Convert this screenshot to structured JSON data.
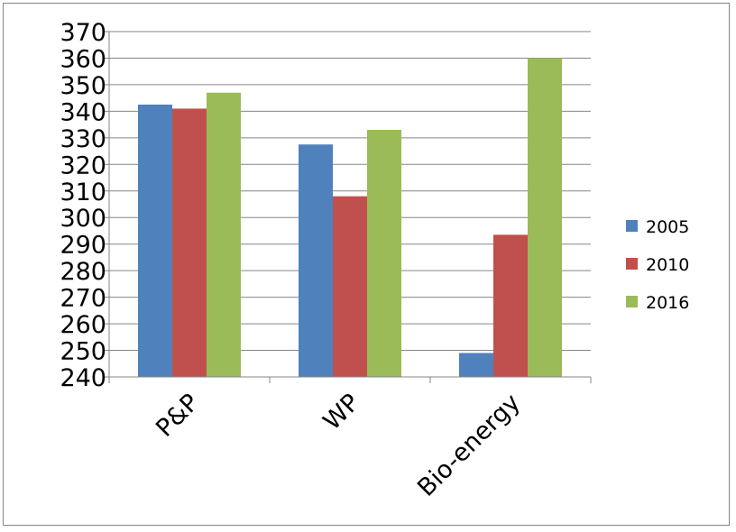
{
  "chart_data": {
    "type": "bar",
    "categories": [
      "P&P",
      "WP",
      "Bio-energy"
    ],
    "series": [
      {
        "name": "2005",
        "color": "#4f81bd",
        "values": [
          342.5,
          327.5,
          249
        ]
      },
      {
        "name": "2010",
        "color": "#c0504d",
        "values": [
          341,
          308,
          293.5
        ]
      },
      {
        "name": "2016",
        "color": "#9bbb59",
        "values": [
          347,
          333,
          360
        ]
      }
    ],
    "ylim": [
      240,
      370
    ],
    "ytick_step": 10,
    "grid": true,
    "legend_position": "right",
    "title": "",
    "xlabel": "",
    "ylabel": ""
  }
}
